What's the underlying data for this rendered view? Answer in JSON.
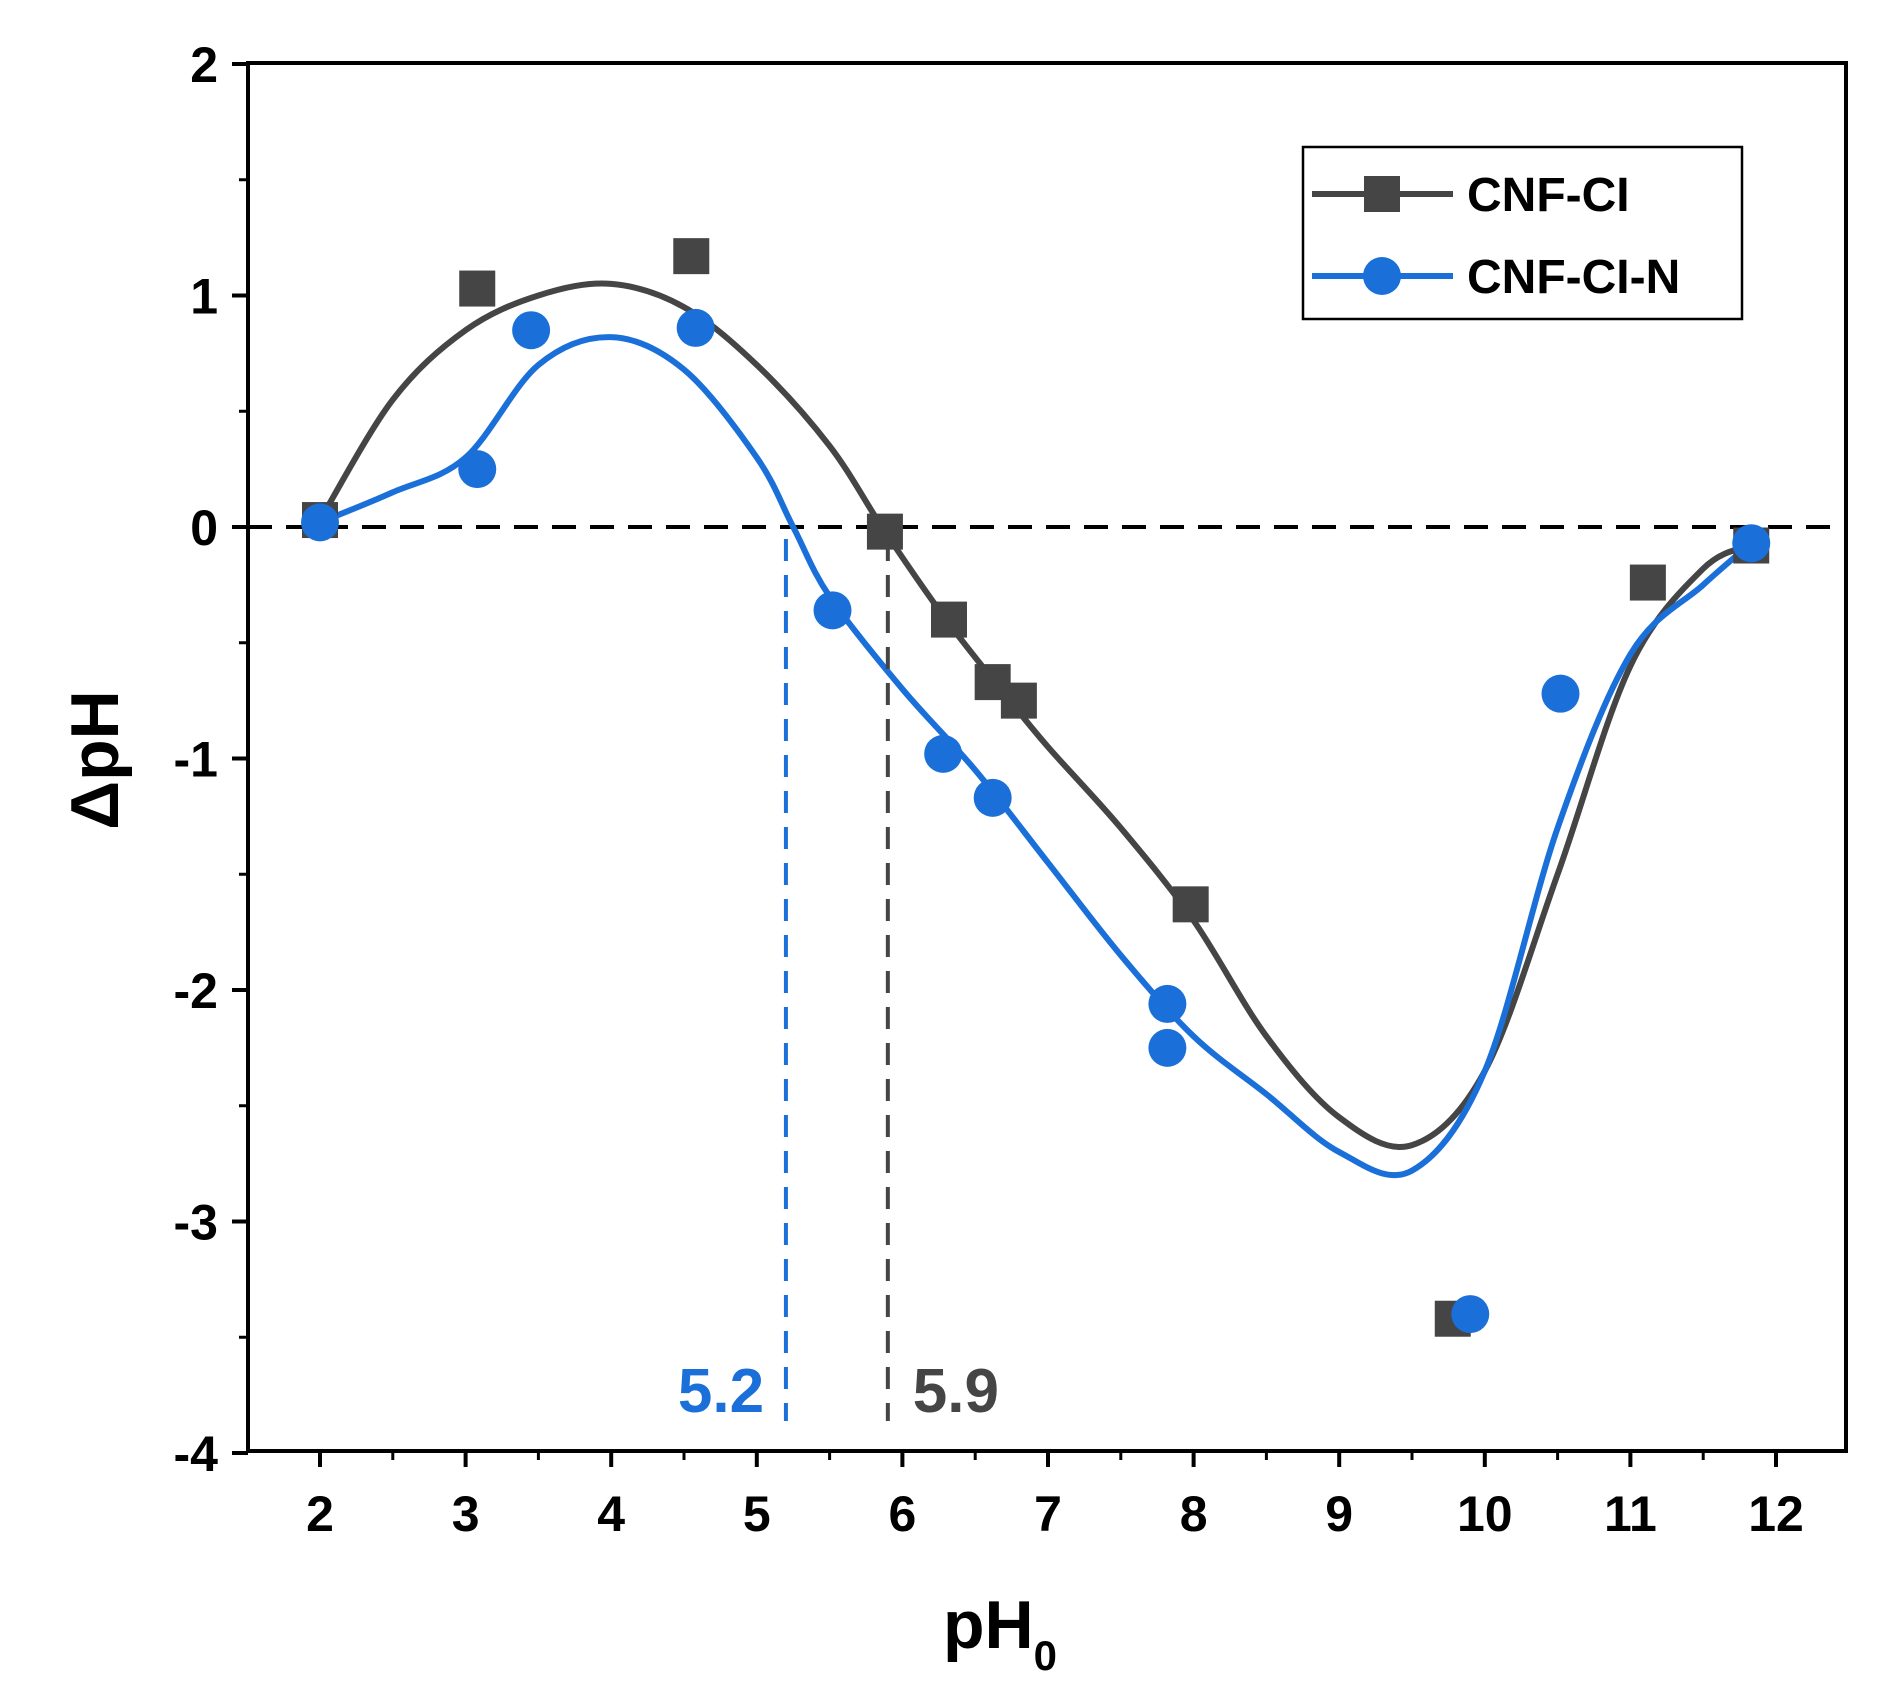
{
  "chart_data": {
    "type": "scatter",
    "title": "",
    "xlabel": "pH",
    "xlabel_subscript": "0",
    "ylabel": "ΔpH",
    "xlim": [
      1.5,
      12.5
    ],
    "ylim": [
      -4,
      2
    ],
    "xticks": [
      2,
      3,
      4,
      5,
      6,
      7,
      8,
      9,
      10,
      11,
      12
    ],
    "yticks": [
      2,
      1,
      0,
      -1,
      -2,
      -3,
      -4
    ],
    "grid": false,
    "legend_position": "top-right",
    "reference_line": {
      "y": 0,
      "style": "dashed",
      "color": "#000000"
    },
    "series": [
      {
        "name": "CNF-CI",
        "marker": "square",
        "color": "#454545",
        "points": [
          [
            2.0,
            0.03
          ],
          [
            3.08,
            1.03
          ],
          [
            4.55,
            1.17
          ],
          [
            5.88,
            -0.02
          ],
          [
            6.32,
            -0.4
          ],
          [
            6.62,
            -0.67
          ],
          [
            6.8,
            -0.75
          ],
          [
            7.98,
            -1.63
          ],
          [
            9.78,
            -3.42
          ],
          [
            11.12,
            -0.24
          ],
          [
            11.83,
            -0.08
          ]
        ],
        "fit_curve": [
          [
            2.0,
            0.03
          ],
          [
            2.5,
            0.55
          ],
          [
            3.0,
            0.85
          ],
          [
            3.5,
            1.0
          ],
          [
            4.0,
            1.05
          ],
          [
            4.5,
            0.95
          ],
          [
            5.0,
            0.7
          ],
          [
            5.5,
            0.35
          ],
          [
            5.88,
            -0.02
          ],
          [
            6.3,
            -0.4
          ],
          [
            6.7,
            -0.72
          ],
          [
            7.0,
            -0.95
          ],
          [
            7.5,
            -1.3
          ],
          [
            8.0,
            -1.7
          ],
          [
            8.5,
            -2.2
          ],
          [
            9.0,
            -2.55
          ],
          [
            9.5,
            -2.67
          ],
          [
            10.0,
            -2.35
          ],
          [
            10.5,
            -1.5
          ],
          [
            11.0,
            -0.6
          ],
          [
            11.5,
            -0.18
          ],
          [
            11.83,
            -0.08
          ]
        ],
        "zero_crossing": 5.9
      },
      {
        "name": "CNF-CI-N",
        "marker": "circle",
        "color": "#1a70d8",
        "points": [
          [
            2.0,
            0.02
          ],
          [
            3.08,
            0.25
          ],
          [
            3.45,
            0.85
          ],
          [
            4.58,
            0.86
          ],
          [
            5.52,
            -0.36
          ],
          [
            6.28,
            -0.98
          ],
          [
            6.62,
            -1.17
          ],
          [
            7.82,
            -2.06
          ],
          [
            7.82,
            -2.25
          ],
          [
            9.9,
            -3.4
          ],
          [
            10.52,
            -0.72
          ],
          [
            11.83,
            -0.07
          ]
        ],
        "fit_curve": [
          [
            2.0,
            0.02
          ],
          [
            2.5,
            0.15
          ],
          [
            3.0,
            0.3
          ],
          [
            3.5,
            0.7
          ],
          [
            4.0,
            0.82
          ],
          [
            4.5,
            0.68
          ],
          [
            5.0,
            0.3
          ],
          [
            5.25,
            0.0
          ],
          [
            5.5,
            -0.3
          ],
          [
            6.0,
            -0.7
          ],
          [
            6.5,
            -1.05
          ],
          [
            7.0,
            -1.45
          ],
          [
            7.5,
            -1.85
          ],
          [
            8.0,
            -2.2
          ],
          [
            8.5,
            -2.45
          ],
          [
            9.0,
            -2.7
          ],
          [
            9.5,
            -2.78
          ],
          [
            10.0,
            -2.35
          ],
          [
            10.5,
            -1.3
          ],
          [
            11.0,
            -0.55
          ],
          [
            11.5,
            -0.25
          ],
          [
            11.83,
            -0.07
          ]
        ],
        "zero_crossing": 5.2
      }
    ],
    "annotations": [
      {
        "text": "5.2",
        "x": 5.27,
        "series": "CNF-CI-N",
        "color": "#1a70d8"
      },
      {
        "text": "5.9",
        "x": 5.92,
        "series": "CNF-CI",
        "color": "#454545"
      }
    ]
  }
}
